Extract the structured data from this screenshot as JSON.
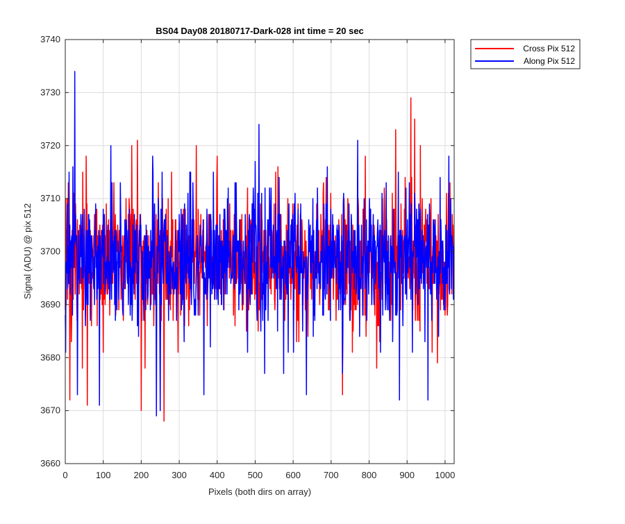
{
  "chart_data": {
    "type": "line",
    "title": "BS04 Day08 20180717-Dark-028 int time = 20 sec",
    "xlabel": "Pixels (both dirs on array)",
    "ylabel": "Signal (ADU) @ pix 512",
    "xlim": [
      0,
      1024
    ],
    "ylim": [
      3660,
      3740
    ],
    "xticks": [
      0,
      100,
      200,
      300,
      400,
      500,
      600,
      700,
      800,
      900,
      1000
    ],
    "yticks": [
      3660,
      3670,
      3680,
      3690,
      3700,
      3710,
      3720,
      3730,
      3740
    ],
    "grid": true,
    "legend": "outside-top-right",
    "n_points": 1024,
    "series": [
      {
        "name": "Cross Pix 512",
        "color": "#ff0000",
        "mean": 3698,
        "spread": 6,
        "seed": 91,
        "peaks": [
          [
            8,
            3713
          ],
          [
            12,
            3672
          ],
          [
            25,
            3715
          ],
          [
            45,
            3678
          ],
          [
            55,
            3718
          ],
          [
            58,
            3671
          ],
          [
            175,
            3720
          ],
          [
            190,
            3721
          ],
          [
            200,
            3670
          ],
          [
            210,
            3678
          ],
          [
            260,
            3668
          ],
          [
            280,
            3715
          ],
          [
            345,
            3720
          ],
          [
            400,
            3718
          ],
          [
            480,
            3712
          ],
          [
            560,
            3716
          ],
          [
            680,
            3713
          ],
          [
            730,
            3673
          ],
          [
            790,
            3718
          ],
          [
            820,
            3678
          ],
          [
            870,
            3723
          ],
          [
            880,
            3688
          ],
          [
            910,
            3729
          ],
          [
            920,
            3725
          ],
          [
            935,
            3720
          ],
          [
            980,
            3679
          ]
        ]
      },
      {
        "name": "Along Pix 512",
        "color": "#0000ff",
        "mean": 3698,
        "spread": 6,
        "seed": 47,
        "peaks": [
          [
            25,
            3734
          ],
          [
            20,
            3716
          ],
          [
            32,
            3673
          ],
          [
            90,
            3671
          ],
          [
            120,
            3720
          ],
          [
            230,
            3718
          ],
          [
            240,
            3669
          ],
          [
            250,
            3670
          ],
          [
            330,
            3715
          ],
          [
            365,
            3673
          ],
          [
            390,
            3715
          ],
          [
            500,
            3717
          ],
          [
            510,
            3724
          ],
          [
            525,
            3677
          ],
          [
            575,
            3677
          ],
          [
            635,
            3673
          ],
          [
            690,
            3716
          ],
          [
            730,
            3677
          ],
          [
            770,
            3721
          ],
          [
            830,
            3681
          ],
          [
            880,
            3672
          ],
          [
            955,
            3672
          ],
          [
            1010,
            3718
          ]
        ]
      }
    ]
  }
}
